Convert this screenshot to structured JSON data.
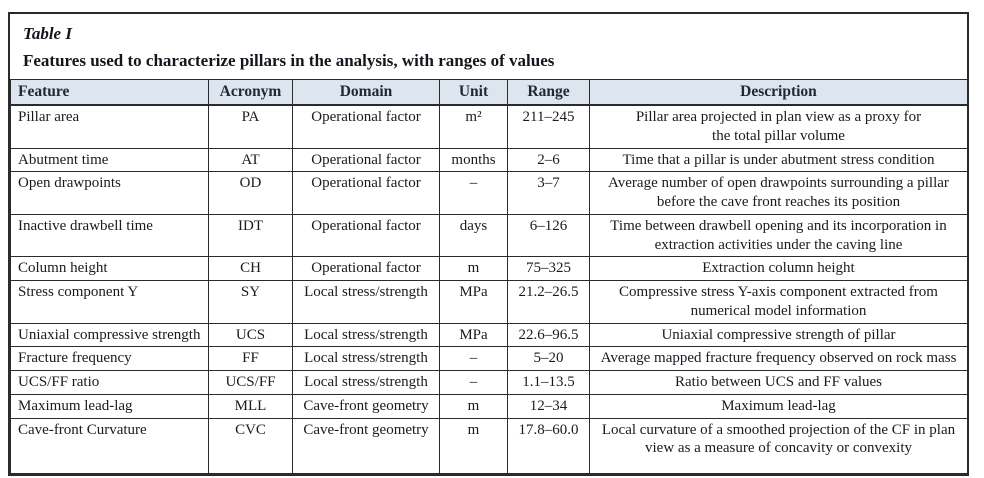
{
  "title": "Table I",
  "subtitle": "Features used to characterize pillars in the analysis, with ranges of values",
  "colors": {
    "header_background": "#dde5ef",
    "border": "#2b2b2b",
    "text": "#181b22"
  },
  "table": {
    "headers": [
      "Feature",
      "Acronym",
      "Domain",
      "Unit",
      "Range",
      "Description"
    ],
    "rows": [
      {
        "feature": "Pillar area",
        "acronym": "PA",
        "domain": "Operational factor",
        "unit": "m²",
        "range": "211–245",
        "description": "Pillar area projected in plan view as a proxy for\nthe total pillar volume"
      },
      {
        "feature": "Abutment time",
        "acronym": "AT",
        "domain": "Operational factor",
        "unit": "months",
        "range": "2–6",
        "description": "Time that a pillar is under abutment stress condition"
      },
      {
        "feature": "Open drawpoints",
        "acronym": "OD",
        "domain": "Operational factor",
        "unit": "–",
        "range": "3–7",
        "description": "Average number of open drawpoints surrounding a pillar\nbefore the cave front reaches its position"
      },
      {
        "feature": "Inactive drawbell time",
        "acronym": "IDT",
        "domain": "Operational factor",
        "unit": "days",
        "range": "6–126",
        "description": "Time between drawbell opening and its incorporation in\nextraction activities under the caving line"
      },
      {
        "feature": "Column height",
        "acronym": "CH",
        "domain": "Operational factor",
        "unit": "m",
        "range": "75–325",
        "description": "Extraction column height"
      },
      {
        "feature": "Stress component Y",
        "acronym": "SY",
        "domain": "Local stress/strength",
        "unit": "MPa",
        "range": "21.2–26.5",
        "description": "Compressive stress Y-axis component extracted from\nnumerical model information"
      },
      {
        "feature": "Uniaxial compressive strength",
        "acronym": "UCS",
        "domain": "Local stress/strength",
        "unit": "MPa",
        "range": "22.6–96.5",
        "description": "Uniaxial compressive strength of pillar"
      },
      {
        "feature": "Fracture frequency",
        "acronym": "FF",
        "domain": "Local stress/strength",
        "unit": "–",
        "range": "5–20",
        "description": "Average mapped fracture frequency observed on rock mass"
      },
      {
        "feature": "UCS/FF ratio",
        "acronym": "UCS/FF",
        "domain": "Local stress/strength",
        "unit": "–",
        "range": "1.1–13.5",
        "description": "Ratio between UCS and FF values"
      },
      {
        "feature": "Maximum lead-lag",
        "acronym": "MLL",
        "domain": "Cave-front geometry",
        "unit": "m",
        "range": "12–34",
        "description": "Maximum lead-lag"
      },
      {
        "feature": "Cave-front Curvature",
        "acronym": "CVC",
        "domain": "Cave-front geometry",
        "unit": "m",
        "range": "17.8–60.0",
        "description": "Local curvature of a smoothed projection of the CF in plan\nview as a measure of concavity or convexity"
      }
    ]
  }
}
